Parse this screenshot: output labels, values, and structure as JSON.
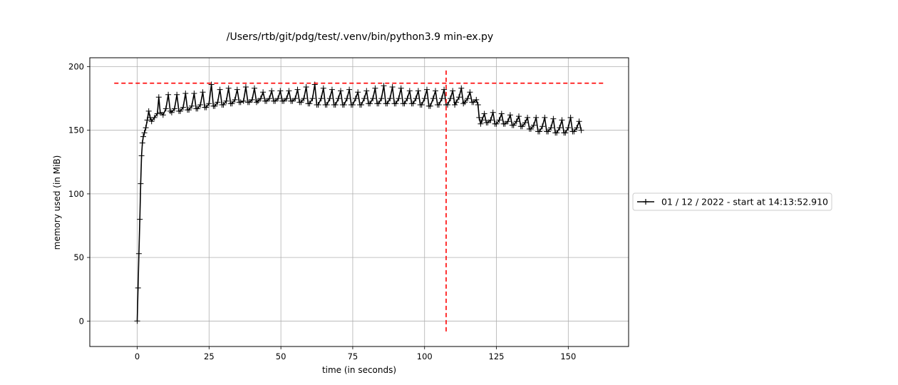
{
  "chart_data": {
    "type": "line",
    "title": "/Users/rtb/git/pdg/test/.venv/bin/python3.9 min-ex.py",
    "xlabel": "time (in seconds)",
    "ylabel": "memory used (in MiB)",
    "xlim": [
      -16.5,
      171
    ],
    "ylim": [
      -20,
      207
    ],
    "xticks": [
      0,
      25,
      50,
      75,
      100,
      125,
      150
    ],
    "yticks": [
      0,
      50,
      100,
      150,
      200
    ],
    "grid": true,
    "legend_position": "right",
    "series": [
      {
        "name": "01 / 12 / 2022 - start at 14:13:52.910",
        "color": "#000000",
        "marker": "plus",
        "x": [
          0,
          0.3,
          0.6,
          0.9,
          1.2,
          1.5,
          1.8,
          2.1,
          2.5,
          3.0,
          3.5,
          4.0,
          4.5,
          5.0,
          6.0,
          7.0,
          7.5,
          8.0,
          9.0,
          10.0,
          10.8,
          11.5,
          12.0,
          13.0,
          13.8,
          14.5,
          15.0,
          16.0,
          16.8,
          17.5,
          18.0,
          19.0,
          19.8,
          20.5,
          21.0,
          22.0,
          22.8,
          23.5,
          24.0,
          25.0,
          25.8,
          26.5,
          27.0,
          28.0,
          28.8,
          29.5,
          30.0,
          31.0,
          31.8,
          32.5,
          33.0,
          34.0,
          34.8,
          35.5,
          36.0,
          37.0,
          37.8,
          38.5,
          39.0,
          40.0,
          40.8,
          41.5,
          42.0,
          43.0,
          43.8,
          44.5,
          45.0,
          46.0,
          46.8,
          47.5,
          48.0,
          49.0,
          49.8,
          50.5,
          51.0,
          52.0,
          52.8,
          53.5,
          54.0,
          55.0,
          55.8,
          56.5,
          57.0,
          58.0,
          58.8,
          59.5,
          60.0,
          61.0,
          61.8,
          62.5,
          63.0,
          64.0,
          64.8,
          65.5,
          66.0,
          67.0,
          67.8,
          68.5,
          69.0,
          70.0,
          70.8,
          71.5,
          72.0,
          73.0,
          73.8,
          74.5,
          75.0,
          76.0,
          76.8,
          77.5,
          78.0,
          79.0,
          79.8,
          80.5,
          81.0,
          82.0,
          82.8,
          83.5,
          84.0,
          85.0,
          85.8,
          86.5,
          87.0,
          88.0,
          88.8,
          89.5,
          90.0,
          91.0,
          91.8,
          92.5,
          93.0,
          94.0,
          94.8,
          95.5,
          96.0,
          97.0,
          97.8,
          98.5,
          99.0,
          100.0,
          100.8,
          101.5,
          102.0,
          103.0,
          103.8,
          104.5,
          105.0,
          106.0,
          106.8,
          107.5,
          108.0,
          109.0,
          109.8,
          110.5,
          111.0,
          112.0,
          112.8,
          113.5,
          114.0,
          115.0,
          115.8,
          116.5,
          117.0,
          118.0,
          118.6,
          119.0,
          119.5,
          120.0,
          120.8,
          121.5,
          122.0,
          123.0,
          123.8,
          124.5,
          125.0,
          126.0,
          126.8,
          127.5,
          128.0,
          129.0,
          129.8,
          130.5,
          131.0,
          132.0,
          132.8,
          133.5,
          134.0,
          135.0,
          135.8,
          136.5,
          137.0,
          138.0,
          138.8,
          139.5,
          140.0,
          141.0,
          141.8,
          142.5,
          143.0,
          144.0,
          144.8,
          145.5,
          146.0,
          147.0,
          147.8,
          148.5,
          149.0,
          150.0,
          150.8,
          151.5,
          152.0,
          153.0,
          153.8,
          154.5
        ],
        "y": [
          0,
          26,
          53,
          80,
          108,
          130,
          140,
          145,
          148,
          152,
          158,
          165,
          160,
          157,
          160,
          163,
          176,
          164,
          162,
          167,
          178,
          165,
          164,
          167,
          178,
          165,
          165,
          168,
          179,
          166,
          166,
          169,
          179,
          167,
          167,
          170,
          180,
          168,
          168,
          171,
          186,
          169,
          169,
          172,
          182,
          170,
          170,
          173,
          183,
          171,
          171,
          174,
          182,
          172,
          172,
          173,
          184,
          172,
          172,
          174,
          183,
          172,
          173,
          175,
          180,
          173,
          173,
          175,
          181,
          173,
          173,
          175,
          181,
          173,
          173,
          175,
          181,
          173,
          173,
          175,
          182,
          172,
          172,
          175,
          184,
          171,
          171,
          175,
          186,
          170,
          170,
          175,
          183,
          170,
          170,
          175,
          182,
          170,
          170,
          175,
          181,
          170,
          170,
          175,
          182,
          170,
          170,
          175,
          180,
          170,
          170,
          175,
          181,
          171,
          171,
          175,
          183,
          171,
          171,
          175,
          185,
          171,
          171,
          175,
          184,
          171,
          171,
          175,
          183,
          171,
          171,
          175,
          181,
          171,
          171,
          175,
          181,
          170,
          170,
          175,
          182,
          169,
          169,
          175,
          181,
          170,
          170,
          175,
          182,
          170,
          170,
          175,
          181,
          170,
          172,
          176,
          183,
          171,
          172,
          175,
          180,
          172,
          172,
          174,
          170,
          160,
          155,
          158,
          163,
          156,
          156,
          158,
          164,
          155,
          155,
          158,
          163,
          155,
          155,
          157,
          162,
          154,
          154,
          157,
          161,
          153,
          153,
          156,
          160,
          151,
          151,
          154,
          160,
          149,
          149,
          153,
          160,
          149,
          149,
          152,
          159,
          148,
          148,
          152,
          158,
          148,
          148,
          152,
          160,
          149,
          149,
          152,
          157,
          150
        ]
      }
    ],
    "hline": {
      "y": 187,
      "x_range": [
        -8,
        163
      ],
      "color": "#ff0000",
      "style": "dashed"
    },
    "vline": {
      "x": 107.5,
      "y_range": [
        -9,
        197
      ],
      "color": "#ff0000",
      "style": "dashed"
    }
  }
}
